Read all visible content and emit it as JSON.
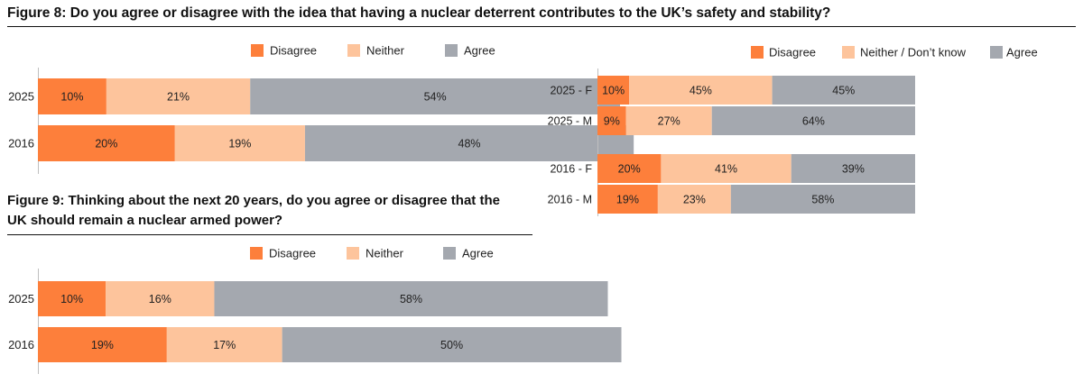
{
  "fig8": {
    "title": "Figure 8: Do you agree or disagree with the idea that having a nuclear deterrent contributes to the UK’s safety and stability?"
  },
  "fig9": {
    "title_line1": "Figure 9: Thinking about the next 20 years, do you agree or disagree that the",
    "title_line2": "UK should remain a nuclear armed power?"
  },
  "colors": {
    "disagree": "#fd7f3b",
    "neither": "#fdc49c",
    "agree": "#a4a8af",
    "axis": "#bfbfbf"
  },
  "chart_data": [
    {
      "id": "fig8-overall",
      "type": "bar",
      "orientation": "horizontal",
      "stacked": true,
      "categories": [
        "2025",
        "2016"
      ],
      "series": [
        {
          "name": "Disagree",
          "values": [
            10,
            20
          ],
          "labels": [
            "10%",
            "20%"
          ]
        },
        {
          "name": "Neither",
          "values": [
            21,
            19
          ],
          "labels": [
            "21%",
            "19%"
          ]
        },
        {
          "name": "Agree",
          "values": [
            54,
            48
          ],
          "labels": [
            "54%",
            "48%"
          ]
        }
      ],
      "xlim": [
        0,
        85
      ],
      "legend": "top-center"
    },
    {
      "id": "fig8-gender",
      "type": "bar",
      "orientation": "horizontal",
      "stacked": true,
      "categories": [
        "2025 - F",
        "2025 - M",
        "2016 - F",
        "2016 - M"
      ],
      "series": [
        {
          "name": "Disagree",
          "values": [
            10,
            9,
            20,
            19
          ],
          "labels": [
            "10%",
            "9%",
            "20%",
            "19%"
          ]
        },
        {
          "name": "Neither / Don’t know",
          "values": [
            45,
            27,
            41,
            23
          ],
          "labels": [
            "45%",
            "27%",
            "41%",
            "23%"
          ]
        },
        {
          "name": "Agree",
          "values": [
            45,
            64,
            39,
            58
          ],
          "labels": [
            "45%",
            "64%",
            "39%",
            "58%"
          ]
        }
      ],
      "xlim": [
        0,
        100
      ],
      "legend": "top-center"
    },
    {
      "id": "fig9-overall",
      "type": "bar",
      "orientation": "horizontal",
      "stacked": true,
      "categories": [
        "2025",
        "2016"
      ],
      "series": [
        {
          "name": "Disagree",
          "values": [
            10,
            19
          ],
          "labels": [
            "10%",
            "19%"
          ]
        },
        {
          "name": "Neither",
          "values": [
            16,
            17
          ],
          "labels": [
            "16%",
            "17%"
          ]
        },
        {
          "name": "Agree",
          "values": [
            58,
            50
          ],
          "labels": [
            "58%",
            "50%"
          ]
        }
      ],
      "xlim": [
        0,
        85
      ],
      "legend": "top-center"
    }
  ]
}
